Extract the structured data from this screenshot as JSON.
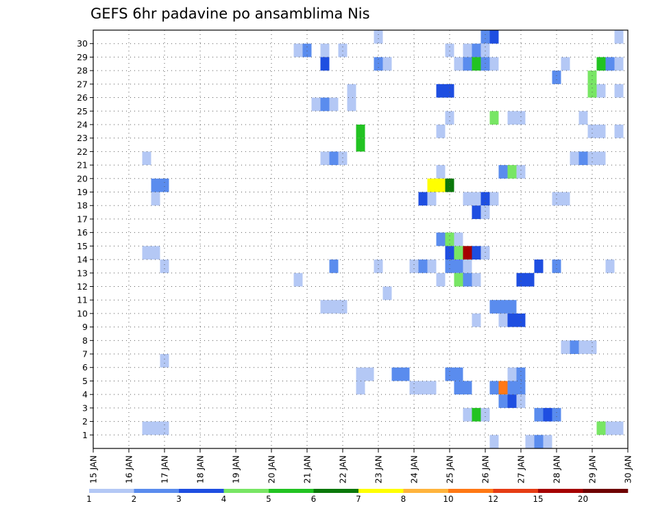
{
  "chart_data": {
    "type": "heatmap",
    "title": "GEFS 6hr padavine po ansamblima Nis",
    "xlabel": "",
    "ylabel": "",
    "x_ticks": [
      "15 JAN",
      "16 JAN",
      "17 JAN",
      "18 JAN",
      "19 JAN",
      "20 JAN",
      "21 JAN",
      "22 JAN",
      "23 JAN",
      "24 JAN",
      "25 JAN",
      "26 JAN",
      "27 JAN",
      "28 JAN",
      "29 JAN",
      "30 JAN"
    ],
    "y_ticks": [
      "1",
      "2",
      "3",
      "4",
      "5",
      "6",
      "7",
      "8",
      "9",
      "10",
      "11",
      "12",
      "13",
      "14",
      "15",
      "16",
      "17",
      "18",
      "19",
      "20",
      "21",
      "22",
      "23",
      "24",
      "25",
      "26",
      "27",
      "28",
      "29",
      "30"
    ],
    "x_range_days": [
      0,
      15
    ],
    "y_range_members": [
      0,
      30
    ],
    "step_days": 0.25,
    "grid": true,
    "colorbar": {
      "placement": "bottom",
      "labels": [
        "1",
        "2",
        "3",
        "4",
        "5",
        "6",
        "7",
        "8",
        "10",
        "12",
        "15",
        "20"
      ],
      "colors": [
        "#b4c8f5",
        "#5a8cee",
        "#1e4ee1",
        "#78e664",
        "#22c322",
        "#0a780a",
        "#ffff00",
        "#ffb43c",
        "#ff7814",
        "#e63c14",
        "#a50000",
        "#6e0000"
      ]
    },
    "cells": [
      {
        "d": 16.5,
        "m": 21,
        "c": 0
      },
      {
        "d": 16.5,
        "m": 14,
        "c": 0
      },
      {
        "d": 16.5,
        "m": 1,
        "c": 0
      },
      {
        "d": 16.75,
        "m": 19,
        "c": 1
      },
      {
        "d": 16.75,
        "m": 18,
        "c": 0
      },
      {
        "d": 16.75,
        "m": 14,
        "c": 0
      },
      {
        "d": 16.75,
        "m": 1,
        "c": 0
      },
      {
        "d": 17.0,
        "m": 19,
        "c": 1
      },
      {
        "d": 17.0,
        "m": 13,
        "c": 0
      },
      {
        "d": 17.0,
        "m": 6,
        "c": 0
      },
      {
        "d": 17.0,
        "m": 1,
        "c": 0
      },
      {
        "d": 20.75,
        "m": 29,
        "c": 0
      },
      {
        "d": 20.75,
        "m": 12,
        "c": 0
      },
      {
        "d": 21.0,
        "m": 29,
        "c": 1
      },
      {
        "d": 21.25,
        "m": 25,
        "c": 0
      },
      {
        "d": 21.5,
        "m": 29,
        "c": 0
      },
      {
        "d": 21.5,
        "m": 28,
        "c": 2
      },
      {
        "d": 21.5,
        "m": 25,
        "c": 1
      },
      {
        "d": 21.5,
        "m": 21,
        "c": 0
      },
      {
        "d": 21.5,
        "m": 10,
        "c": 0
      },
      {
        "d": 21.75,
        "m": 25,
        "c": 0
      },
      {
        "d": 21.75,
        "m": 21,
        "c": 1
      },
      {
        "d": 21.75,
        "m": 13,
        "c": 1
      },
      {
        "d": 21.75,
        "m": 10,
        "c": 0
      },
      {
        "d": 22.0,
        "m": 29,
        "c": 0
      },
      {
        "d": 22.0,
        "m": 21,
        "c": 0
      },
      {
        "d": 22.0,
        "m": 10,
        "c": 0
      },
      {
        "d": 22.25,
        "m": 26,
        "c": 0
      },
      {
        "d": 22.25,
        "m": 25,
        "c": 0
      },
      {
        "d": 22.5,
        "m": 23,
        "c": 4
      },
      {
        "d": 22.5,
        "m": 22,
        "c": 4
      },
      {
        "d": 22.5,
        "m": 5,
        "c": 0
      },
      {
        "d": 22.5,
        "m": 4,
        "c": 0
      },
      {
        "d": 22.75,
        "m": 5,
        "c": 0
      },
      {
        "d": 23.0,
        "m": 30,
        "c": 0
      },
      {
        "d": 23.0,
        "m": 28,
        "c": 1
      },
      {
        "d": 23.0,
        "m": 13,
        "c": 0
      },
      {
        "d": 23.25,
        "m": 28,
        "c": 0
      },
      {
        "d": 23.25,
        "m": 11,
        "c": 0
      },
      {
        "d": 23.5,
        "m": 5,
        "c": 1
      },
      {
        "d": 23.75,
        "m": 5,
        "c": 1
      },
      {
        "d": 24.0,
        "m": 13,
        "c": 0
      },
      {
        "d": 24.0,
        "m": 4,
        "c": 0
      },
      {
        "d": 24.25,
        "m": 18,
        "c": 2
      },
      {
        "d": 24.25,
        "m": 13,
        "c": 1
      },
      {
        "d": 24.25,
        "m": 4,
        "c": 0
      },
      {
        "d": 24.5,
        "m": 19,
        "c": 6
      },
      {
        "d": 24.5,
        "m": 18,
        "c": 0
      },
      {
        "d": 24.5,
        "m": 13,
        "c": 0
      },
      {
        "d": 24.5,
        "m": 4,
        "c": 0
      },
      {
        "d": 24.75,
        "m": 26,
        "c": 2
      },
      {
        "d": 24.75,
        "m": 23,
        "c": 0
      },
      {
        "d": 24.75,
        "m": 20,
        "c": 0
      },
      {
        "d": 24.75,
        "m": 19,
        "c": 6
      },
      {
        "d": 24.75,
        "m": 15,
        "c": 1
      },
      {
        "d": 24.75,
        "m": 12,
        "c": 0
      },
      {
        "d": 25.0,
        "m": 29,
        "c": 0
      },
      {
        "d": 25.0,
        "m": 26,
        "c": 2
      },
      {
        "d": 25.0,
        "m": 24,
        "c": 0
      },
      {
        "d": 25.0,
        "m": 19,
        "c": 5
      },
      {
        "d": 25.0,
        "m": 15,
        "c": 3
      },
      {
        "d": 25.0,
        "m": 14,
        "c": 2
      },
      {
        "d": 25.0,
        "m": 13,
        "c": 1
      },
      {
        "d": 25.0,
        "m": 5,
        "c": 1
      },
      {
        "d": 25.25,
        "m": 28,
        "c": 0
      },
      {
        "d": 25.25,
        "m": 15,
        "c": 0
      },
      {
        "d": 25.25,
        "m": 14,
        "c": 3
      },
      {
        "d": 25.25,
        "m": 13,
        "c": 1
      },
      {
        "d": 25.25,
        "m": 12,
        "c": 3
      },
      {
        "d": 25.25,
        "m": 5,
        "c": 1
      },
      {
        "d": 25.25,
        "m": 4,
        "c": 1
      },
      {
        "d": 25.5,
        "m": 29,
        "c": 0
      },
      {
        "d": 25.5,
        "m": 28,
        "c": 1
      },
      {
        "d": 25.5,
        "m": 18,
        "c": 0
      },
      {
        "d": 25.5,
        "m": 14,
        "c": 10
      },
      {
        "d": 25.5,
        "m": 13,
        "c": 0
      },
      {
        "d": 25.5,
        "m": 12,
        "c": 1
      },
      {
        "d": 25.5,
        "m": 4,
        "c": 1
      },
      {
        "d": 25.5,
        "m": 2,
        "c": 0
      },
      {
        "d": 25.75,
        "m": 29,
        "c": 1
      },
      {
        "d": 25.75,
        "m": 28,
        "c": 4
      },
      {
        "d": 25.75,
        "m": 18,
        "c": 0
      },
      {
        "d": 25.75,
        "m": 17,
        "c": 2
      },
      {
        "d": 25.75,
        "m": 14,
        "c": 2
      },
      {
        "d": 25.75,
        "m": 12,
        "c": 0
      },
      {
        "d": 25.75,
        "m": 9,
        "c": 0
      },
      {
        "d": 25.75,
        "m": 2,
        "c": 4
      },
      {
        "d": 26.0,
        "m": 30,
        "c": 1
      },
      {
        "d": 26.0,
        "m": 29,
        "c": 0
      },
      {
        "d": 26.0,
        "m": 28,
        "c": 1
      },
      {
        "d": 26.0,
        "m": 18,
        "c": 2
      },
      {
        "d": 26.0,
        "m": 17,
        "c": 0
      },
      {
        "d": 26.0,
        "m": 14,
        "c": 0
      },
      {
        "d": 26.0,
        "m": 2,
        "c": 0
      },
      {
        "d": 26.25,
        "m": 30,
        "c": 2
      },
      {
        "d": 26.25,
        "m": 28,
        "c": 0
      },
      {
        "d": 26.25,
        "m": 24,
        "c": 3
      },
      {
        "d": 26.25,
        "m": 18,
        "c": 0
      },
      {
        "d": 26.25,
        "m": 10,
        "c": 1
      },
      {
        "d": 26.25,
        "m": 4,
        "c": 1
      },
      {
        "d": 26.25,
        "m": 0,
        "c": 0
      },
      {
        "d": 26.5,
        "m": 20,
        "c": 1
      },
      {
        "d": 26.5,
        "m": 10,
        "c": 1
      },
      {
        "d": 26.5,
        "m": 9,
        "c": 0
      },
      {
        "d": 26.5,
        "m": 4,
        "c": 8
      },
      {
        "d": 26.5,
        "m": 3,
        "c": 1
      },
      {
        "d": 26.75,
        "m": 24,
        "c": 0
      },
      {
        "d": 26.75,
        "m": 20,
        "c": 3
      },
      {
        "d": 26.75,
        "m": 10,
        "c": 1
      },
      {
        "d": 26.75,
        "m": 9,
        "c": 2
      },
      {
        "d": 26.75,
        "m": 5,
        "c": 0
      },
      {
        "d": 26.75,
        "m": 4,
        "c": 1
      },
      {
        "d": 26.75,
        "m": 3,
        "c": 2
      },
      {
        "d": 27.0,
        "m": 24,
        "c": 0
      },
      {
        "d": 27.0,
        "m": 20,
        "c": 0
      },
      {
        "d": 27.0,
        "m": 12,
        "c": 2
      },
      {
        "d": 27.0,
        "m": 9,
        "c": 2
      },
      {
        "d": 27.0,
        "m": 5,
        "c": 1
      },
      {
        "d": 27.0,
        "m": 4,
        "c": 1
      },
      {
        "d": 27.0,
        "m": 3,
        "c": 0
      },
      {
        "d": 27.25,
        "m": 12,
        "c": 2
      },
      {
        "d": 27.25,
        "m": 0,
        "c": 0
      },
      {
        "d": 27.5,
        "m": 13,
        "c": 2
      },
      {
        "d": 27.5,
        "m": 2,
        "c": 1
      },
      {
        "d": 27.5,
        "m": 0,
        "c": 1
      },
      {
        "d": 27.75,
        "m": 2,
        "c": 2
      },
      {
        "d": 27.75,
        "m": 0,
        "c": 0
      },
      {
        "d": 28.0,
        "m": 27,
        "c": 1
      },
      {
        "d": 28.0,
        "m": 18,
        "c": 0
      },
      {
        "d": 28.0,
        "m": 13,
        "c": 1
      },
      {
        "d": 28.0,
        "m": 2,
        "c": 1
      },
      {
        "d": 28.25,
        "m": 28,
        "c": 0
      },
      {
        "d": 28.25,
        "m": 18,
        "c": 0
      },
      {
        "d": 28.25,
        "m": 7,
        "c": 0
      },
      {
        "d": 28.5,
        "m": 21,
        "c": 0
      },
      {
        "d": 28.5,
        "m": 7,
        "c": 1
      },
      {
        "d": 28.75,
        "m": 24,
        "c": 0
      },
      {
        "d": 28.75,
        "m": 21,
        "c": 1
      },
      {
        "d": 28.75,
        "m": 7,
        "c": 0
      },
      {
        "d": 29.0,
        "m": 27,
        "c": 3
      },
      {
        "d": 29.0,
        "m": 26,
        "c": 3
      },
      {
        "d": 29.0,
        "m": 23,
        "c": 0
      },
      {
        "d": 29.0,
        "m": 21,
        "c": 0
      },
      {
        "d": 29.0,
        "m": 7,
        "c": 0
      },
      {
        "d": 29.25,
        "m": 28,
        "c": 4
      },
      {
        "d": 29.25,
        "m": 26,
        "c": 0
      },
      {
        "d": 29.25,
        "m": 23,
        "c": 0
      },
      {
        "d": 29.25,
        "m": 21,
        "c": 0
      },
      {
        "d": 29.25,
        "m": 1,
        "c": 3
      },
      {
        "d": 29.5,
        "m": 28,
        "c": 1
      },
      {
        "d": 29.5,
        "m": 13,
        "c": 0
      },
      {
        "d": 29.5,
        "m": 1,
        "c": 0
      },
      {
        "d": 29.75,
        "m": 30,
        "c": 0
      },
      {
        "d": 29.75,
        "m": 28,
        "c": 0
      },
      {
        "d": 29.75,
        "m": 26,
        "c": 0
      },
      {
        "d": 29.75,
        "m": 23,
        "c": 0
      },
      {
        "d": 29.75,
        "m": 1,
        "c": 0
      }
    ]
  }
}
